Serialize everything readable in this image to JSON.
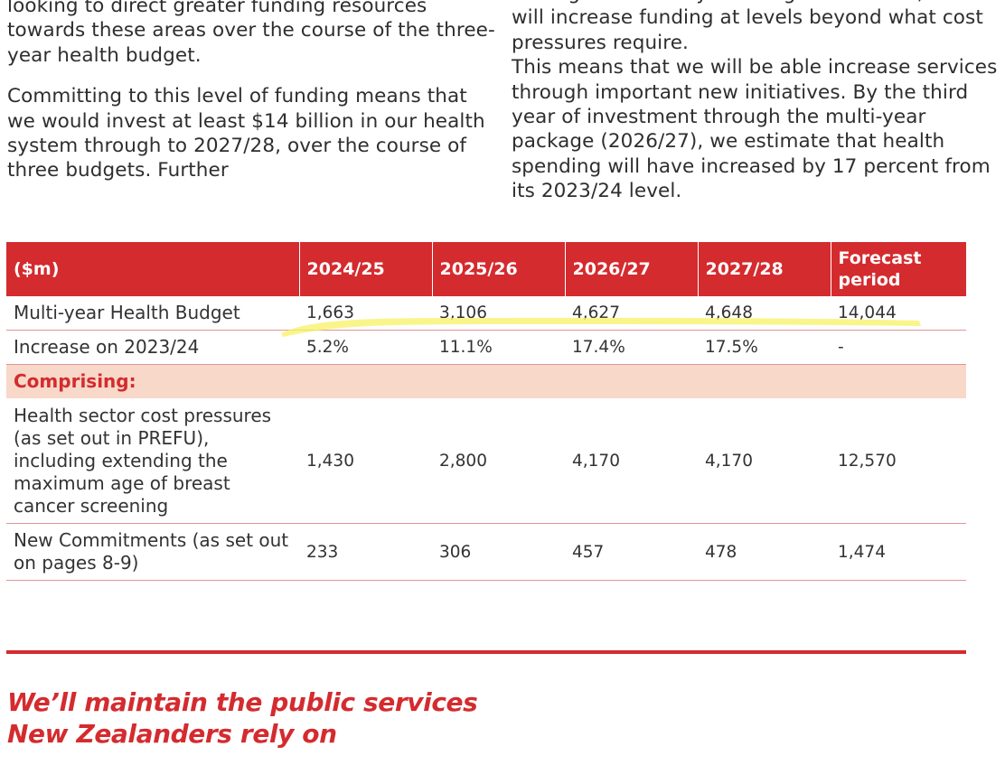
{
  "body_text": {
    "left": {
      "para1": "looking to direct greater funding resources towards these areas over the course of the three-year health budget.",
      "para2": "Committing to this level of funding means that we would invest at least $14 billion in our health system through to 2027/28, over the course of three budgets. Further"
    },
    "right": {
      "para1": "Through the three-year budget for health, Labour will increase funding at levels beyond what cost pressures require.",
      "para2": "This means that we will be able increase services through important new initiatives. By the third year of investment through the multi-year package (2026/27), we estimate that health spending will have increased by 17 percent from its 2023/24 level."
    }
  },
  "table": {
    "headers": [
      "($m)",
      "2024/25",
      "2025/26",
      "2026/27",
      "2027/28",
      "Forecast period"
    ],
    "rows": {
      "budget": {
        "label": "Multi-year Health Budget",
        "values": [
          "1,663",
          "3,106",
          "4,627",
          "4,648",
          "14,044"
        ]
      },
      "increase": {
        "label": "Increase on 2023/24",
        "values": [
          "5.2%",
          "11.1%",
          "17.4%",
          "17.5%",
          "-"
        ]
      },
      "comprising": {
        "label": "Comprising:"
      },
      "pressures": {
        "label": "Health sector cost pressures (as set out in PREFU), including extending the maximum age of breast cancer screening",
        "values": [
          "1,430",
          "2,800",
          "4,170",
          "4,170",
          "12,570"
        ]
      },
      "new_commitments": {
        "label": "New Commitments (as set out on pages 8-9)",
        "values": [
          "233",
          "306",
          "457",
          "478",
          "1,474"
        ]
      }
    }
  },
  "section_heading": {
    "line1": "We’ll maintain the public services",
    "line2": "New Zealanders rely on"
  },
  "colors": {
    "brand_red": "#d42b2f",
    "comprising_band": "#f7d8c9",
    "highlighter": "#f7f26a"
  }
}
